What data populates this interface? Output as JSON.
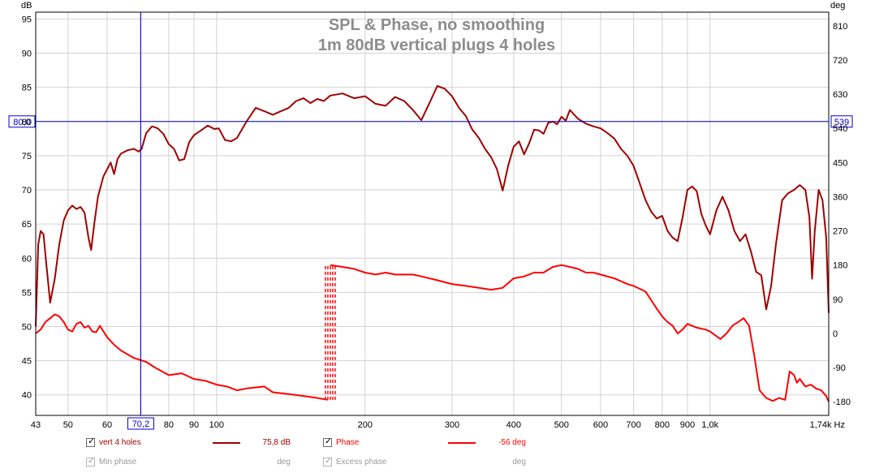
{
  "chart_data": {
    "type": "line",
    "title": "SPL & Phase, no smoothing",
    "subtitle": "1m 80dB vertical plugs 4 holes",
    "xscale": "log",
    "xlim": [
      43,
      1740
    ],
    "left_axis": {
      "unit": "dB",
      "lim": [
        37,
        96
      ],
      "ticks": [
        "40",
        "45",
        "50",
        "55",
        "60",
        "65",
        "70",
        "75",
        "80",
        "85",
        "90",
        "95"
      ]
    },
    "right_axis": {
      "unit": "deg",
      "lim": [
        -216,
        846
      ],
      "ticks": [
        "-180",
        "-90",
        "0",
        "90",
        "180",
        "270",
        "360",
        "450",
        "540",
        "630",
        "720",
        "810"
      ]
    },
    "x_ticks": [
      "43",
      "50",
      "60",
      "80",
      "90",
      "100",
      "200",
      "300",
      "400",
      "500",
      "600",
      "700",
      "800",
      "900",
      "1,0k",
      "1,74k Hz"
    ],
    "x_tick_values": [
      43,
      50,
      60,
      80,
      90,
      100,
      200,
      300,
      400,
      500,
      600,
      700,
      800,
      900,
      1000,
      1740
    ],
    "cursor": {
      "x": 70.2,
      "x_label": "70,2",
      "y": 80.0,
      "y_label": "80,0",
      "y_right_label": "539"
    },
    "series": [
      {
        "name": "vert 4 holes",
        "axis": "left",
        "color": "#a00000",
        "points": [
          [
            43,
            50
          ],
          [
            43.5,
            62
          ],
          [
            44,
            64
          ],
          [
            44.6,
            63.5
          ],
          [
            45.2,
            59
          ],
          [
            46,
            53.5
          ],
          [
            47,
            57
          ],
          [
            48,
            62
          ],
          [
            49,
            65.5
          ],
          [
            50,
            67
          ],
          [
            51,
            67.7
          ],
          [
            52,
            67.2
          ],
          [
            53,
            67.5
          ],
          [
            54,
            66.7
          ],
          [
            55,
            63
          ],
          [
            55.7,
            61.2
          ],
          [
            56.5,
            65
          ],
          [
            57.5,
            69
          ],
          [
            59,
            72
          ],
          [
            60,
            73
          ],
          [
            61,
            74
          ],
          [
            62,
            72.3
          ],
          [
            63,
            74.5
          ],
          [
            64,
            75.3
          ],
          [
            66,
            75.8
          ],
          [
            68,
            76
          ],
          [
            69.5,
            75.6
          ],
          [
            70.5,
            76
          ],
          [
            72,
            78.3
          ],
          [
            74,
            79.3
          ],
          [
            76,
            79
          ],
          [
            78,
            78.2
          ],
          [
            80,
            76.7
          ],
          [
            82,
            76
          ],
          [
            84,
            74.3
          ],
          [
            86,
            74.5
          ],
          [
            88,
            77
          ],
          [
            90,
            78
          ],
          [
            93,
            78.7
          ],
          [
            96,
            79.4
          ],
          [
            99,
            78.9
          ],
          [
            101,
            79
          ],
          [
            104,
            77.3
          ],
          [
            107,
            77.1
          ],
          [
            110,
            77.6
          ],
          [
            115,
            80
          ],
          [
            120,
            82
          ],
          [
            125,
            81.5
          ],
          [
            130,
            81
          ],
          [
            135,
            81.5
          ],
          [
            140,
            82
          ],
          [
            145,
            83
          ],
          [
            150,
            83.4
          ],
          [
            155,
            82.7
          ],
          [
            160,
            83.3
          ],
          [
            165,
            83
          ],
          [
            170,
            83.8
          ],
          [
            180,
            84.1
          ],
          [
            190,
            83.4
          ],
          [
            200,
            83.7
          ],
          [
            210,
            82.6
          ],
          [
            220,
            82.3
          ],
          [
            230,
            83.6
          ],
          [
            240,
            83
          ],
          [
            250,
            81.7
          ],
          [
            260,
            80.2
          ],
          [
            270,
            82.7
          ],
          [
            280,
            85.2
          ],
          [
            290,
            84.8
          ],
          [
            300,
            83.7
          ],
          [
            310,
            82
          ],
          [
            320,
            80.8
          ],
          [
            330,
            78.8
          ],
          [
            340,
            77.6
          ],
          [
            350,
            76
          ],
          [
            360,
            74.8
          ],
          [
            370,
            73
          ],
          [
            380,
            69.9
          ],
          [
            390,
            73.6
          ],
          [
            400,
            76.3
          ],
          [
            410,
            77.1
          ],
          [
            420,
            75.2
          ],
          [
            430,
            76.8
          ],
          [
            440,
            78.8
          ],
          [
            450,
            78.7
          ],
          [
            460,
            78.2
          ],
          [
            470,
            79.8
          ],
          [
            480,
            80
          ],
          [
            490,
            79.6
          ],
          [
            500,
            80.7
          ],
          [
            510,
            80.1
          ],
          [
            520,
            81.7
          ],
          [
            540,
            80.4
          ],
          [
            560,
            79.7
          ],
          [
            580,
            79.3
          ],
          [
            600,
            79
          ],
          [
            620,
            78.3
          ],
          [
            640,
            77.5
          ],
          [
            660,
            76
          ],
          [
            680,
            75
          ],
          [
            700,
            73.5
          ],
          [
            720,
            71
          ],
          [
            740,
            68.5
          ],
          [
            760,
            66.8
          ],
          [
            780,
            65.8
          ],
          [
            800,
            66.2
          ],
          [
            820,
            64
          ],
          [
            840,
            63
          ],
          [
            860,
            62.5
          ],
          [
            880,
            66
          ],
          [
            900,
            70
          ],
          [
            920,
            70.5
          ],
          [
            940,
            69.8
          ],
          [
            960,
            66.5
          ],
          [
            980,
            64.8
          ],
          [
            1000,
            63.5
          ],
          [
            1030,
            67
          ],
          [
            1060,
            69
          ],
          [
            1090,
            67
          ],
          [
            1120,
            64
          ],
          [
            1150,
            62.5
          ],
          [
            1180,
            63.5
          ],
          [
            1210,
            61
          ],
          [
            1240,
            58
          ],
          [
            1270,
            57.5
          ],
          [
            1300,
            52.5
          ],
          [
            1330,
            56
          ],
          [
            1360,
            62
          ],
          [
            1400,
            68.5
          ],
          [
            1440,
            69.5
          ],
          [
            1480,
            70
          ],
          [
            1520,
            70.7
          ],
          [
            1560,
            70
          ],
          [
            1590,
            66
          ],
          [
            1610,
            57
          ],
          [
            1630,
            64
          ],
          [
            1660,
            70
          ],
          [
            1690,
            68.5
          ],
          [
            1720,
            63
          ],
          [
            1740,
            52
          ]
        ]
      },
      {
        "name": "Phase",
        "axis": "right",
        "color": "#ff0000",
        "points": [
          [
            43,
            0
          ],
          [
            44,
            10
          ],
          [
            45,
            30
          ],
          [
            46,
            40
          ],
          [
            47,
            50
          ],
          [
            48,
            45
          ],
          [
            49,
            30
          ],
          [
            50,
            10
          ],
          [
            51,
            5
          ],
          [
            52,
            25
          ],
          [
            53,
            30
          ],
          [
            54,
            15
          ],
          [
            55,
            20
          ],
          [
            56,
            5
          ],
          [
            57,
            3
          ],
          [
            58,
            20
          ],
          [
            59,
            5
          ],
          [
            60,
            -10
          ],
          [
            62,
            -30
          ],
          [
            64,
            -45
          ],
          [
            66,
            -55
          ],
          [
            68,
            -65
          ],
          [
            70,
            -70
          ],
          [
            72,
            -75
          ],
          [
            75,
            -90
          ],
          [
            80,
            -110
          ],
          [
            85,
            -105
          ],
          [
            90,
            -120
          ],
          [
            95,
            -125
          ],
          [
            100,
            -135
          ],
          [
            105,
            -140
          ],
          [
            110,
            -150
          ],
          [
            115,
            -145
          ],
          [
            125,
            -140
          ],
          [
            130,
            -155
          ],
          [
            140,
            -160
          ],
          [
            150,
            -165
          ],
          [
            160,
            -170
          ],
          [
            168,
            -175
          ],
          [
            170,
            180
          ],
          [
            180,
            175
          ],
          [
            190,
            170
          ],
          [
            200,
            160
          ],
          [
            210,
            155
          ],
          [
            220,
            160
          ],
          [
            230,
            155
          ],
          [
            250,
            155
          ],
          [
            260,
            150
          ],
          [
            280,
            140
          ],
          [
            300,
            130
          ],
          [
            320,
            125
          ],
          [
            340,
            120
          ],
          [
            360,
            115
          ],
          [
            380,
            120
          ],
          [
            400,
            145
          ],
          [
            420,
            150
          ],
          [
            440,
            160
          ],
          [
            460,
            160
          ],
          [
            480,
            175
          ],
          [
            500,
            180
          ],
          [
            520,
            175
          ],
          [
            540,
            170
          ],
          [
            560,
            160
          ],
          [
            580,
            160
          ],
          [
            600,
            155
          ],
          [
            640,
            145
          ],
          [
            680,
            130
          ],
          [
            700,
            125
          ],
          [
            740,
            110
          ],
          [
            780,
            65
          ],
          [
            800,
            45
          ],
          [
            820,
            30
          ],
          [
            840,
            20
          ],
          [
            860,
            0
          ],
          [
            880,
            10
          ],
          [
            900,
            25
          ],
          [
            940,
            15
          ],
          [
            980,
            10
          ],
          [
            1000,
            5
          ],
          [
            1050,
            -15
          ],
          [
            1080,
            0
          ],
          [
            1110,
            20
          ],
          [
            1140,
            30
          ],
          [
            1170,
            40
          ],
          [
            1200,
            20
          ],
          [
            1230,
            -60
          ],
          [
            1260,
            -150
          ],
          [
            1300,
            -170
          ],
          [
            1340,
            -178
          ],
          [
            1380,
            -170
          ],
          [
            1420,
            -175
          ],
          [
            1450,
            -100
          ],
          [
            1480,
            -110
          ],
          [
            1500,
            -130
          ],
          [
            1520,
            -120
          ],
          [
            1560,
            -140
          ],
          [
            1600,
            -135
          ],
          [
            1640,
            -145
          ],
          [
            1680,
            -150
          ],
          [
            1720,
            -165
          ],
          [
            1740,
            -180
          ]
        ]
      }
    ]
  },
  "legend": {
    "row1": {
      "series1_label": "vert 4 holes",
      "series1_value": "75,8 dB",
      "series2_label": "Phase",
      "series2_value": "-56 deg"
    },
    "row2": {
      "item1_label": "Min phase",
      "item1_value": "deg",
      "item2_label": "Excess phase",
      "item2_value": "deg"
    },
    "checkmark": "✓"
  }
}
